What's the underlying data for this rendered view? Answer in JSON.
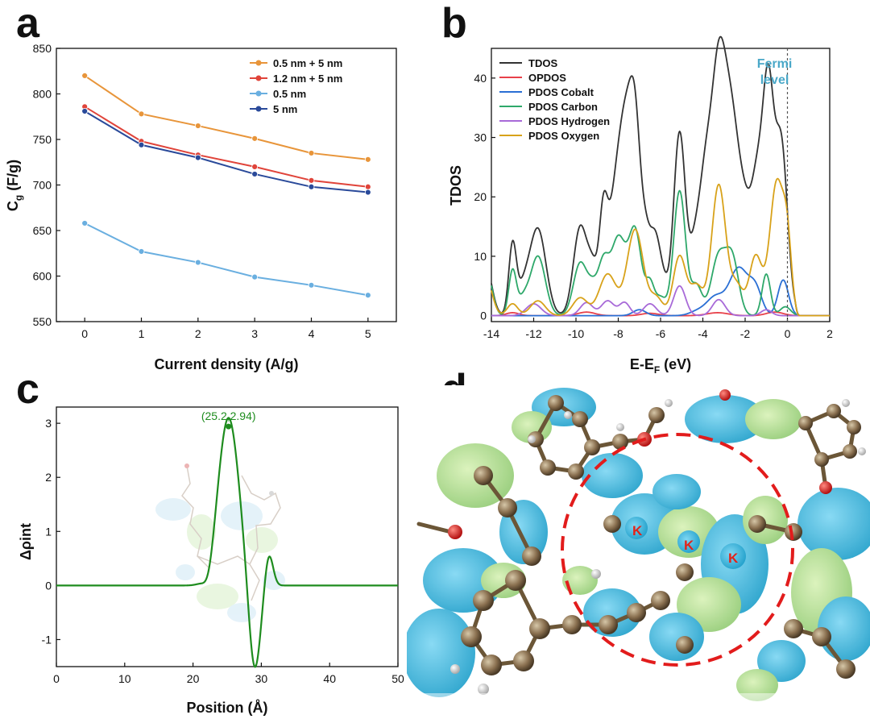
{
  "panels": {
    "a": "a",
    "b": "b",
    "c": "c",
    "d": "d"
  },
  "chart_data": [
    {
      "id": "a",
      "type": "line",
      "title": "",
      "xlabel": "Current density (A/g)",
      "ylabel_main": "C",
      "ylabel_sub": "g",
      "ylabel_unit": " (F/g)",
      "x": [
        0,
        1,
        2,
        3,
        4,
        5
      ],
      "xlim": [
        -0.5,
        5.5
      ],
      "ylim": [
        550,
        850
      ],
      "xticks": [
        0,
        1,
        2,
        3,
        4,
        5
      ],
      "yticks": [
        550,
        600,
        650,
        700,
        750,
        800,
        850
      ],
      "legend_position": "top-right",
      "series": [
        {
          "name": "0.5 nm + 5 nm",
          "color": "#e8953a",
          "values": [
            820,
            778,
            765,
            751,
            735,
            728
          ]
        },
        {
          "name": "1.2 nm + 5 nm",
          "color": "#e0443a",
          "values": [
            786,
            748,
            733,
            720,
            705,
            698
          ]
        },
        {
          "name": "0.5 nm",
          "color": "#6aafe0",
          "values": [
            658,
            627,
            615,
            599,
            590,
            579
          ]
        },
        {
          "name": "5 nm",
          "color": "#2a4a9a",
          "values": [
            781,
            744,
            730,
            712,
            698,
            692
          ]
        }
      ]
    },
    {
      "id": "b",
      "type": "line",
      "title": "",
      "xlabel_main": "E-E",
      "xlabel_sub": "F",
      "xlabel_unit": " (eV)",
      "ylabel": "TDOS",
      "xlim": [
        -14,
        2
      ],
      "ylim": [
        -1,
        45
      ],
      "xticks": [
        -14,
        -12,
        -10,
        -8,
        -6,
        -4,
        -2,
        0,
        2
      ],
      "yticks": [
        0,
        10,
        20,
        30,
        40
      ],
      "annotation_line1": "Fermi",
      "annotation_line2": "level",
      "annotation_color": "#4aa8c8",
      "fermi_x": 0,
      "legend_position": "top-left",
      "series": [
        {
          "name": "TDOS",
          "color": "#333333",
          "peaks": [
            [
              -14.3,
              9,
              0.3
            ],
            [
              -13,
              11.5,
              0.18
            ],
            [
              -12.5,
              4,
              0.3
            ],
            [
              -11.8,
              14.5,
              0.38
            ],
            [
              -9.8,
              14.8,
              0.32
            ],
            [
              -9.2,
              7,
              0.25
            ],
            [
              -8.7,
              15.5,
              0.2
            ],
            [
              -8.2,
              16,
              0.3
            ],
            [
              -7.7,
              26,
              0.3
            ],
            [
              -7.2,
              31,
              0.28
            ],
            [
              -6.7,
              8,
              0.2
            ],
            [
              -6.3,
              12,
              0.25
            ],
            [
              -5.9,
              5,
              0.25
            ],
            [
              -5.1,
              30.8,
              0.28
            ],
            [
              -4.4,
              9,
              0.25
            ],
            [
              -3.9,
              20,
              0.3
            ],
            [
              -3.25,
              39.5,
              0.35
            ],
            [
              -2.6,
              28,
              0.35
            ],
            [
              -2.0,
              13,
              0.3
            ],
            [
              -1.4,
              22,
              0.3
            ],
            [
              -0.9,
              33,
              0.25
            ],
            [
              -0.3,
              29,
              0.3
            ]
          ]
        },
        {
          "name": "OPDOS",
          "color": "#e8414a",
          "peaks": [
            [
              -13,
              0.5,
              0.3
            ],
            [
              -9.5,
              0.6,
              0.4
            ],
            [
              -6.5,
              0.4,
              0.4
            ],
            [
              -3.3,
              0.5,
              0.5
            ],
            [
              -0.6,
              0.6,
              0.4
            ]
          ]
        },
        {
          "name": "PDOS Cobalt",
          "color": "#2a6fd4",
          "peaks": [
            [
              -7.0,
              1.0,
              0.3
            ],
            [
              -4.2,
              0.8,
              0.4
            ],
            [
              -3.4,
              3,
              0.4
            ],
            [
              -2.3,
              8,
              0.45
            ],
            [
              -1.5,
              4,
              0.3
            ],
            [
              -0.2,
              6,
              0.25
            ]
          ]
        },
        {
          "name": "PDOS Carbon",
          "color": "#2ea86a",
          "peaks": [
            [
              -14.2,
              7,
              0.25
            ],
            [
              -13,
              7.5,
              0.18
            ],
            [
              -12.5,
              2.5,
              0.25
            ],
            [
              -11.8,
              10,
              0.35
            ],
            [
              -9.8,
              8.8,
              0.32
            ],
            [
              -9.2,
              4,
              0.25
            ],
            [
              -8.7,
              8,
              0.25
            ],
            [
              -8.0,
              13,
              0.35
            ],
            [
              -7.2,
              14,
              0.3
            ],
            [
              -6.5,
              5,
              0.2
            ],
            [
              -6.0,
              3,
              0.25
            ],
            [
              -5.1,
              21,
              0.28
            ],
            [
              -4.3,
              5,
              0.25
            ],
            [
              -3.25,
              10,
              0.35
            ],
            [
              -2.6,
              9,
              0.3
            ],
            [
              -1.0,
              7,
              0.2
            ],
            [
              -0.1,
              1.5,
              0.25
            ]
          ]
        },
        {
          "name": "PDOS Hydrogen",
          "color": "#a86ad8",
          "peaks": [
            [
              -12,
              2,
              0.35
            ],
            [
              -9.5,
              2.2,
              0.3
            ],
            [
              -8.5,
              2.5,
              0.3
            ],
            [
              -7.7,
              2.2,
              0.25
            ],
            [
              -6.5,
              2,
              0.3
            ],
            [
              -5.1,
              5,
              0.28
            ],
            [
              -3.25,
              2.7,
              0.3
            ],
            [
              -1.0,
              1,
              0.25
            ]
          ]
        },
        {
          "name": "PDOS Oxygen",
          "color": "#d8a21a",
          "peaks": [
            [
              -14.3,
              7,
              0.3
            ],
            [
              -13,
              2,
              0.25
            ],
            [
              -11.8,
              2.5,
              0.35
            ],
            [
              -9.8,
              3,
              0.35
            ],
            [
              -8.5,
              7,
              0.4
            ],
            [
              -7.2,
              14.5,
              0.38
            ],
            [
              -6.2,
              3,
              0.3
            ],
            [
              -5.1,
              10,
              0.3
            ],
            [
              -4.3,
              5,
              0.3
            ],
            [
              -3.25,
              22,
              0.33
            ],
            [
              -2.4,
              5,
              0.3
            ],
            [
              -1.5,
              10,
              0.3
            ],
            [
              -0.5,
              22.5,
              0.33
            ],
            [
              0.0,
              10,
              0.2
            ]
          ]
        }
      ]
    },
    {
      "id": "c",
      "type": "line",
      "title": "",
      "xlabel": "Position (Å)",
      "ylabel": "Δρint",
      "xlim": [
        0,
        50
      ],
      "ylim": [
        -1.5,
        3.3
      ],
      "xticks": [
        0,
        10,
        20,
        30,
        40,
        50
      ],
      "yticks": [
        -1,
        0,
        1,
        2,
        3
      ],
      "peak_point": [
        25.2,
        2.94
      ],
      "peak_label": "(25.2,2.94)",
      "color": "#1e8c1e",
      "components": [
        [
          25.2,
          3.1,
          1.55
        ],
        [
          29.0,
          -1.65,
          0.85
        ],
        [
          31.1,
          0.6,
          0.6
        ],
        [
          22.3,
          -0.25,
          0.7
        ]
      ]
    }
  ],
  "panel_d": {
    "atom_labels": [
      "K",
      "K",
      "K"
    ]
  }
}
